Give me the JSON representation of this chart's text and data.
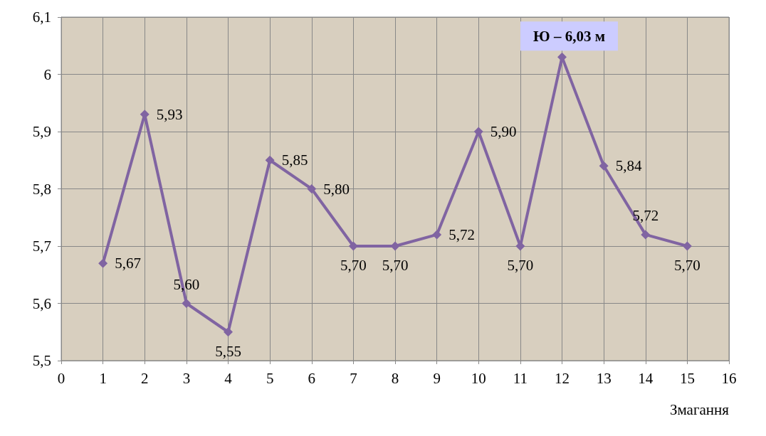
{
  "chart_data": {
    "type": "line",
    "xlabel": "Змагання",
    "x": [
      1,
      2,
      3,
      4,
      5,
      6,
      7,
      8,
      9,
      10,
      11,
      12,
      13,
      14,
      15
    ],
    "series": [
      {
        "color": "#8064a2",
        "values": [
          5.67,
          5.93,
          5.6,
          5.55,
          5.85,
          5.8,
          5.7,
          5.7,
          5.72,
          5.9,
          5.7,
          6.03,
          5.84,
          5.72,
          5.7
        ],
        "value_labels": [
          "5,67",
          "5,93",
          "5,60",
          "5,55",
          "5,85",
          "5,80",
          "5,70",
          "5,70",
          "5,72",
          "5,90",
          "5,70",
          null,
          "5,84",
          "5,72",
          "5,70"
        ]
      }
    ],
    "annotations": [
      {
        "text": "Ю – 6,03 м",
        "x": 12,
        "y": 6.03
      }
    ],
    "xlim": [
      0,
      16
    ],
    "xticks": [
      0,
      1,
      2,
      3,
      4,
      5,
      6,
      7,
      8,
      9,
      10,
      11,
      12,
      13,
      14,
      15,
      16
    ],
    "ylim": [
      5.5,
      6.1
    ],
    "yticks": [
      {
        "value": 5.5,
        "label": "5,5"
      },
      {
        "value": 5.6,
        "label": "5,6"
      },
      {
        "value": 5.7,
        "label": "5,7"
      },
      {
        "value": 5.8,
        "label": "5,8"
      },
      {
        "value": 5.9,
        "label": "5,9"
      },
      6,
      {
        "value": 6.1,
        "label": "6,1"
      }
    ],
    "grid": true,
    "marker": "diamond",
    "line_style": "solid"
  }
}
